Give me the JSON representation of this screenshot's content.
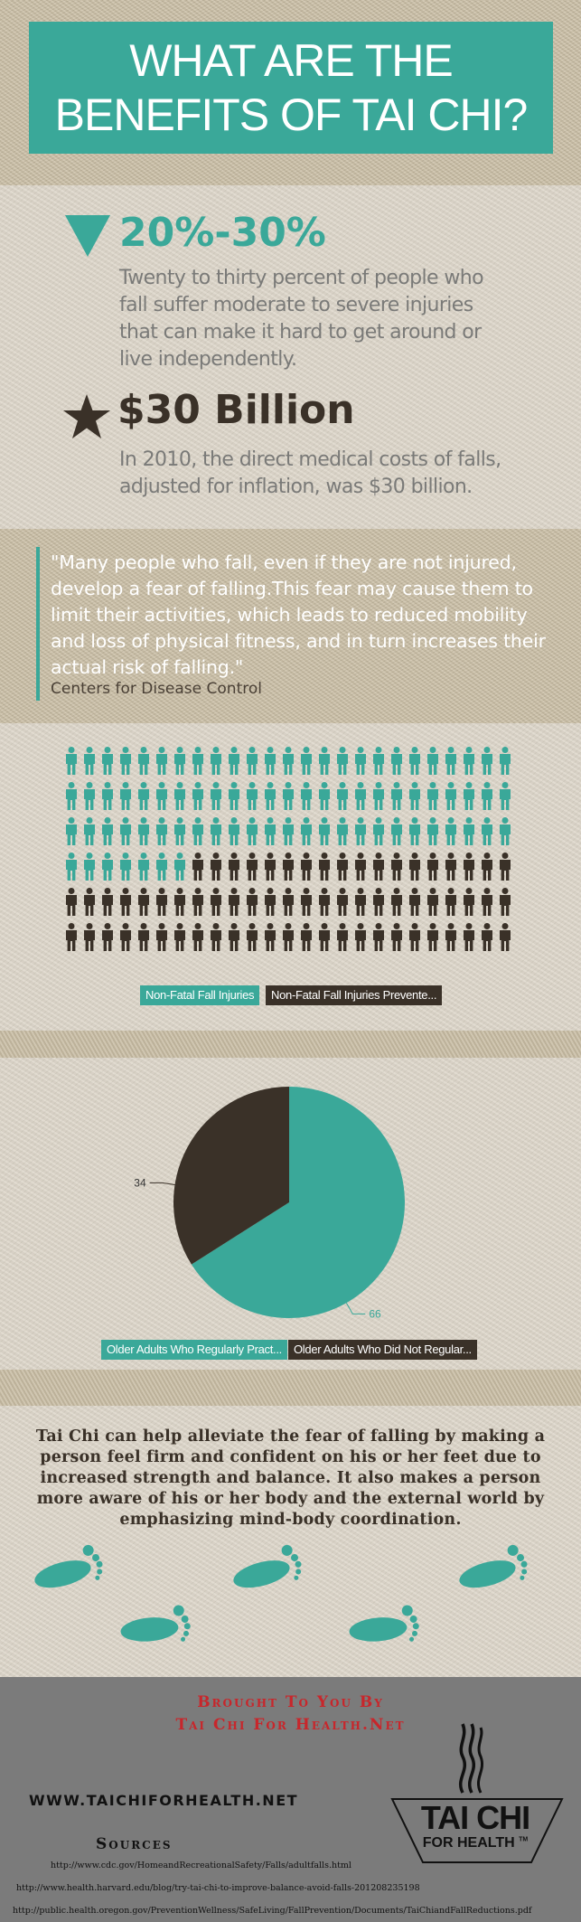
{
  "title": "WHAT ARE THE BENEFITS OF TAI CHI?",
  "stats": [
    {
      "icon": "triangle-down-icon",
      "headline": "20%-30%",
      "description": "Twenty to thirty percent of people who fall suffer moderate to severe injuries that can make it hard to get around or live independently."
    },
    {
      "icon": "star-icon",
      "headline": "$30 Billion",
      "description": "In 2010, the direct medical costs of falls, adjusted for inflation, was $30 billion."
    }
  ],
  "quote": {
    "text": "\"Many people who fall, even if they are not injured, develop a fear of falling.This fear may cause them to limit their activities, which leads to reduced mobility and loss of physical fitness, and in turn increases their actual risk of falling.\"",
    "source": "Centers for Disease Control"
  },
  "pictogram": {
    "total": 150,
    "highlighted": 82,
    "legend": [
      "Non-Fatal Fall Injuries",
      "Non-Fatal Fall Injuries Prevente..."
    ]
  },
  "chart_data": {
    "type": "pie",
    "slices": [
      {
        "name": "Older Adults Who Regularly Pract...",
        "value": 66
      },
      {
        "name": "Older Adults Who Did Not Regular...",
        "value": 34
      }
    ],
    "labels": [
      "66",
      "34"
    ],
    "colors": [
      "#3aa899",
      "#3a3128"
    ]
  },
  "tai_chi_text": "Tai Chi can help alleviate the fear of falling by making a person feel firm and confident on his or her feet due to increased strength and balance. It also makes a person more aware of his or her body and the external world by emphasizing mind-body coordination.",
  "footer": {
    "brought_line1": "Brought To You By",
    "brought_line2": "Tai Chi For Health.Net",
    "website": "WWW.TAICHIFORHEALTH.NET",
    "sources_title": "Sources",
    "sources": [
      "http://www.cdc.gov/HomeandRecreationalSafety/Falls/adultfalls.html",
      "http://www.health.harvard.edu/blog/try-tai-chi-to-improve-balance-avoid-falls-201208235198",
      "http://public.health.oregon.gov/PreventionWellness/SafeLiving/FallPrevention/Documents/TaiChiandFallReductions.pdf"
    ],
    "logo_word": "TAI CHI",
    "logo_sub": "FOR HEALTH",
    "logo_tm": "TM"
  },
  "colors": {
    "teal": "#3aa899",
    "dark": "#3a3128",
    "red": "#c8262b",
    "footer_gray": "#7b7b7b"
  }
}
